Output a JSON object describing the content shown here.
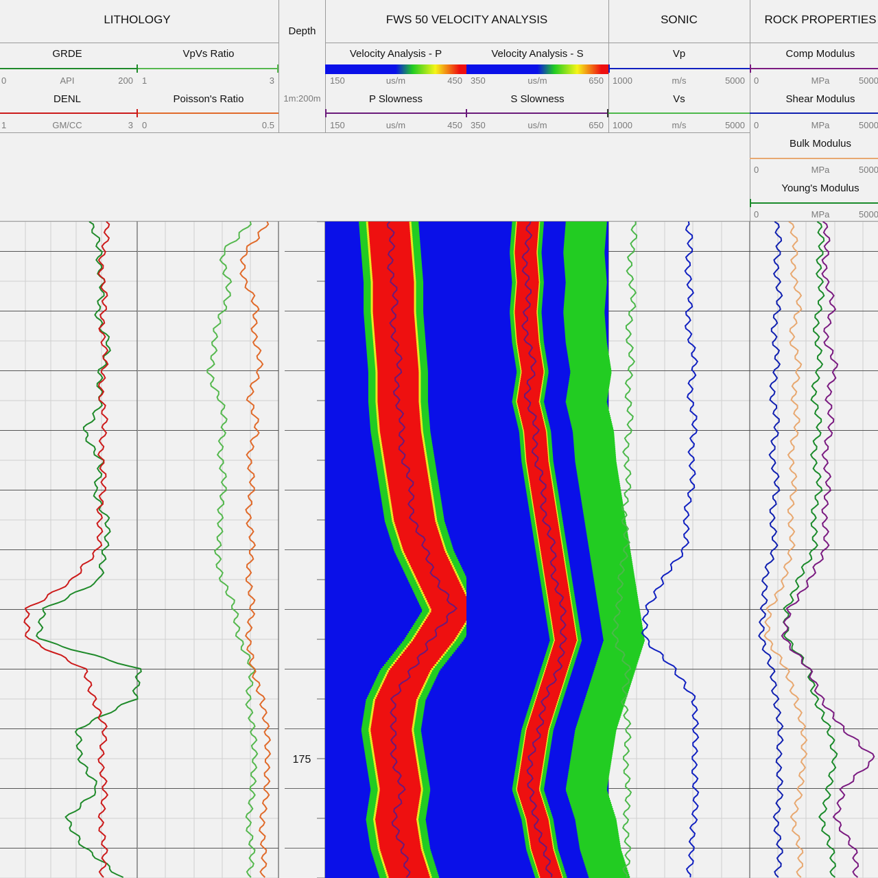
{
  "colors": {
    "grde": "#1f8a2a",
    "denl": "#cc1a1a",
    "vpvs": "#55b84e",
    "poisson": "#e06a2a",
    "pslow": "#6a1a7a",
    "vp": "#1020c0",
    "vs": "#4cb84a",
    "comp": "#7a1a80",
    "shear": "#1020b0",
    "bulk": "#e8a870",
    "young": "#1a8a2a",
    "map_low": "#0a10e8",
    "map_mid": "#22cc22",
    "map_high": "#ee1010"
  },
  "header": {
    "lithology": "LITHOLOGY",
    "depth": "Depth",
    "depth_scale": "1m:200m",
    "fws": "FWS 50 VELOCITY ANALYSIS",
    "sonic": "SONIC",
    "rock": "ROCK PROPERTIES"
  },
  "curves": {
    "grde": {
      "name": "GRDE",
      "min": "0",
      "unit": "API",
      "max": "200"
    },
    "vpvs": {
      "name": "VpVs Ratio",
      "min": "1",
      "max": "3"
    },
    "denl": {
      "name": "DENL",
      "min": "1",
      "unit": "GM/CC",
      "max": "3"
    },
    "poisson": {
      "name": "Poisson's Ratio",
      "min": "0",
      "max": "0.5"
    },
    "vap": {
      "name": "Velocity Analysis - P",
      "min": "150",
      "unit": "us/m",
      "max": "450"
    },
    "vas": {
      "name": "Velocity Analysis - S",
      "min": "350",
      "unit": "us/m",
      "max": "650"
    },
    "pslow": {
      "name": "P Slowness",
      "min": "150",
      "unit": "us/m",
      "max": "450"
    },
    "sslow": {
      "name": "S Slowness",
      "min": "350",
      "unit": "us/m",
      "max": "650"
    },
    "vp": {
      "name": "Vp",
      "min": "1000",
      "unit": "m/s",
      "max": "5000"
    },
    "vs": {
      "name": "Vs",
      "min": "1000",
      "unit": "m/s",
      "max": "5000"
    },
    "comp": {
      "name": "Comp Modulus",
      "min": "0",
      "unit": "MPa",
      "max": "5000"
    },
    "shear": {
      "name": "Shear Modulus",
      "min": "0",
      "unit": "MPa",
      "max": "5000"
    },
    "bulk": {
      "name": "Bulk Modulus",
      "min": "0",
      "unit": "MPa",
      "max": "5000"
    },
    "young": {
      "name": "Young's Modulus",
      "min": "0",
      "unit": "MPa",
      "max": "5000"
    }
  },
  "chart_data": {
    "type": "line",
    "depth_unit": "m",
    "depth_range": [
      157,
      179
    ],
    "depth_labels": [
      175
    ],
    "grid": true,
    "series": [
      {
        "name": "GRDE",
        "unit": "API",
        "range": [
          0,
          200
        ],
        "depth": [
          157,
          158,
          159,
          160,
          161,
          162,
          163,
          164,
          165,
          166,
          167,
          168,
          169,
          170,
          171,
          172,
          173,
          174,
          175,
          176,
          177,
          178,
          179
        ],
        "values": [
          130,
          145,
          150,
          140,
          160,
          145,
          150,
          120,
          150,
          135,
          160,
          150,
          150,
          60,
          60,
          200,
          200,
          110,
          120,
          140,
          100,
          120,
          180
        ]
      },
      {
        "name": "DENL",
        "unit": "GM/CC",
        "range": [
          1,
          3
        ],
        "depth": [
          157,
          158,
          159,
          160,
          161,
          162,
          163,
          164,
          165,
          166,
          167,
          168,
          169,
          170,
          171,
          172,
          173,
          174,
          175,
          176,
          177,
          178,
          179
        ],
        "values": [
          2.55,
          2.5,
          2.5,
          2.5,
          2.52,
          2.5,
          2.5,
          2.5,
          2.5,
          2.48,
          2.48,
          2.4,
          2.1,
          1.35,
          1.45,
          2.2,
          2.4,
          2.5,
          2.5,
          2.5,
          2.5,
          2.5,
          2.5
        ]
      },
      {
        "name": "VpVs Ratio",
        "unit": "",
        "range": [
          1,
          3
        ],
        "depth": [
          157,
          158,
          159,
          160,
          161,
          162,
          163,
          164,
          165,
          166,
          167,
          168,
          172,
          173,
          174,
          175,
          176,
          177,
          178,
          179
        ],
        "values": [
          2.6,
          2.2,
          2.3,
          2.2,
          2.1,
          2.0,
          2.2,
          2.2,
          2.2,
          2.2,
          2.2,
          2.1,
          2.6,
          2.6,
          2.6,
          2.7,
          2.6,
          2.6,
          2.6,
          2.6
        ]
      },
      {
        "name": "Poisson's Ratio",
        "unit": "",
        "range": [
          0,
          0.5
        ],
        "depth": [
          157,
          158,
          159,
          160,
          161,
          162,
          163,
          164,
          165,
          166,
          167,
          168,
          172,
          173,
          174,
          175,
          176,
          177,
          178,
          179
        ],
        "values": [
          0.46,
          0.38,
          0.38,
          0.42,
          0.42,
          0.43,
          0.4,
          0.42,
          0.4,
          0.4,
          0.4,
          0.4,
          0.4,
          0.45,
          0.45,
          0.47,
          0.45,
          0.45,
          0.44,
          0.45
        ]
      },
      {
        "name": "P Slowness",
        "unit": "us/m",
        "range": [
          150,
          450
        ],
        "depth": [
          157,
          158,
          159,
          160,
          161,
          162,
          163,
          164,
          165,
          166,
          167,
          168,
          169,
          170,
          171,
          172,
          173,
          174,
          175,
          176,
          177,
          178,
          179
        ],
        "values": [
          285,
          290,
          295,
          295,
          300,
          305,
          305,
          310,
          320,
          330,
          340,
          360,
          390,
          420,
          380,
          330,
          300,
          290,
          300,
          310,
          300,
          310,
          330
        ]
      },
      {
        "name": "S Slowness",
        "unit": "us/m",
        "range": [
          350,
          650
        ],
        "depth": [
          157,
          158,
          159,
          160,
          161,
          162,
          163,
          164,
          165,
          166,
          167,
          168,
          169,
          170,
          171,
          172,
          173,
          174,
          175,
          176,
          177,
          178,
          179
        ],
        "values": [
          480,
          475,
          480,
          475,
          480,
          490,
          480,
          495,
          500,
          510,
          520,
          530,
          540,
          550,
          560,
          540,
          520,
          500,
          490,
          480,
          500,
          510,
          530
        ]
      },
      {
        "name": "Vp",
        "unit": "m/s",
        "range": [
          1000,
          5000
        ],
        "depth": [
          157,
          158,
          159,
          160,
          161,
          162,
          163,
          164,
          165,
          166,
          167,
          168,
          169,
          170,
          171,
          172,
          173,
          174,
          175,
          176,
          177,
          178,
          179
        ],
        "values": [
          3200,
          3300,
          3300,
          3250,
          3350,
          3400,
          3350,
          3400,
          3400,
          3300,
          3250,
          3100,
          2600,
          2000,
          2100,
          2800,
          3500,
          3400,
          3500,
          3400,
          3500,
          3300,
          3300
        ]
      },
      {
        "name": "Vs",
        "unit": "m/s",
        "range": [
          1000,
          5000
        ],
        "depth": [
          157,
          158,
          159,
          160,
          161,
          162,
          163,
          164,
          165,
          166,
          167,
          168,
          169,
          170,
          171,
          172,
          173,
          174,
          175,
          176,
          177,
          178,
          179
        ],
        "values": [
          1700,
          1650,
          1650,
          1650,
          1600,
          1600,
          1600,
          1550,
          1550,
          1500,
          1500,
          1450,
          1400,
          1200,
          1250,
          1500,
          1500,
          1500,
          1550,
          1500,
          1550,
          1500,
          1500
        ]
      },
      {
        "name": "Comp Modulus",
        "unit": "MPa",
        "range": [
          0,
          5000
        ],
        "depth": [
          157,
          158,
          159,
          160,
          161,
          162,
          163,
          164,
          165,
          166,
          167,
          168,
          169,
          170,
          171,
          172,
          173,
          174,
          175,
          176,
          177,
          178,
          179
        ],
        "values": [
          2600,
          2700,
          2700,
          2900,
          2700,
          3000,
          2800,
          2800,
          2700,
          2700,
          2700,
          2600,
          2200,
          1300,
          1300,
          2000,
          2600,
          3200,
          4500,
          3200,
          3100,
          3600,
          3800
        ]
      },
      {
        "name": "Shear Modulus",
        "unit": "MPa",
        "range": [
          0,
          5000
        ],
        "depth": [
          157,
          158,
          159,
          160,
          161,
          162,
          163,
          164,
          165,
          166,
          167,
          168,
          169,
          170,
          171,
          172,
          173,
          174,
          175,
          176,
          177,
          178,
          179
        ],
        "values": [
          900,
          1000,
          1000,
          950,
          900,
          900,
          850,
          900,
          850,
          900,
          850,
          800,
          600,
          400,
          500,
          700,
          1000,
          1000,
          1100,
          1000,
          1000,
          1000,
          1000
        ]
      },
      {
        "name": "Bulk Modulus",
        "unit": "MPa",
        "range": [
          0,
          5000
        ],
        "depth": [
          157,
          158,
          159,
          160,
          161,
          162,
          163,
          164,
          165,
          166,
          167,
          168,
          169,
          170,
          171,
          172,
          173,
          174,
          175,
          176,
          177,
          178,
          179
        ],
        "values": [
          1400,
          1600,
          1600,
          1700,
          1500,
          1700,
          1600,
          1600,
          1500,
          1500,
          1500,
          1400,
          1300,
          600,
          700,
          1200,
          1700,
          1800,
          2000,
          1700,
          1600,
          1700,
          1800
        ]
      },
      {
        "name": "Young's Modulus",
        "unit": "MPa",
        "range": [
          0,
          5000
        ],
        "depth": [
          157,
          158,
          159,
          160,
          161,
          162,
          163,
          164,
          165,
          166,
          167,
          168,
          169,
          170,
          171,
          172,
          173,
          174,
          175,
          176,
          177,
          178,
          179
        ],
        "values": [
          2400,
          2500,
          2500,
          2400,
          2400,
          2400,
          2300,
          2400,
          2300,
          2400,
          2300,
          2200,
          1800,
          1200,
          1400,
          2000,
          2400,
          2700,
          3100,
          2700,
          2600,
          2800,
          3000
        ]
      }
    ]
  }
}
